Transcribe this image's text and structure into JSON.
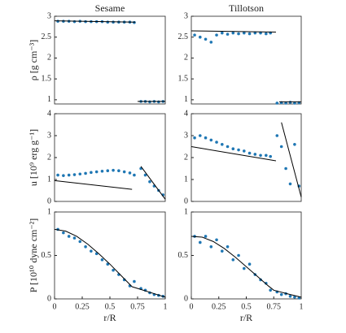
{
  "chart_data": [
    {
      "type": "scatter",
      "title": "Sesame",
      "ylabel": "ρ [g cm⁻³]",
      "xlim": [
        0,
        1
      ],
      "ylim": [
        0.9,
        3
      ],
      "yticks": [
        1,
        1.5,
        2,
        2.5,
        3
      ],
      "series": [
        {
          "color": "#1f77b4",
          "mode": "points",
          "x": [
            0.03,
            0.08,
            0.13,
            0.18,
            0.23,
            0.28,
            0.33,
            0.38,
            0.43,
            0.48,
            0.53,
            0.58,
            0.63,
            0.68,
            0.72,
            0.78,
            0.82,
            0.86,
            0.9,
            0.94,
            0.98
          ],
          "values": [
            2.88,
            2.88,
            2.88,
            2.87,
            2.88,
            2.87,
            2.87,
            2.87,
            2.87,
            2.86,
            2.86,
            2.86,
            2.86,
            2.86,
            2.85,
            0.96,
            0.96,
            0.95,
            0.96,
            0.95,
            0.96
          ]
        },
        {
          "color": "#000000",
          "mode": "line",
          "x": [
            0,
            0.73,
            null,
            0.75,
            1
          ],
          "values": [
            2.89,
            2.86,
            null,
            0.96,
            0.96
          ]
        }
      ]
    },
    {
      "type": "scatter",
      "title": "Tillotson",
      "xlim": [
        0,
        1
      ],
      "ylim": [
        0.9,
        3
      ],
      "yticks": [
        1,
        1.5,
        2,
        2.5,
        3
      ],
      "series": [
        {
          "color": "#1f77b4",
          "mode": "points",
          "x": [
            0.03,
            0.08,
            0.13,
            0.18,
            0.23,
            0.28,
            0.33,
            0.38,
            0.43,
            0.48,
            0.53,
            0.58,
            0.63,
            0.68,
            0.72,
            0.78,
            0.82,
            0.86,
            0.9,
            0.94,
            0.98
          ],
          "values": [
            2.55,
            2.5,
            2.45,
            2.38,
            2.55,
            2.6,
            2.57,
            2.6,
            2.58,
            2.6,
            2.58,
            2.6,
            2.6,
            2.58,
            2.6,
            0.92,
            0.93,
            0.92,
            0.94,
            0.92,
            0.93
          ]
        },
        {
          "color": "#000000",
          "mode": "line",
          "x": [
            0,
            0.77,
            null,
            0.8,
            1
          ],
          "values": [
            2.65,
            2.62,
            null,
            0.95,
            0.95
          ]
        }
      ]
    },
    {
      "type": "scatter",
      "ylabel": "u [10⁹ erg g⁻¹]",
      "xlim": [
        0,
        1
      ],
      "ylim": [
        0,
        4
      ],
      "yticks": [
        0,
        1,
        2,
        3,
        4
      ],
      "series": [
        {
          "color": "#1f77b4",
          "mode": "points",
          "x": [
            0.03,
            0.08,
            0.13,
            0.18,
            0.23,
            0.28,
            0.33,
            0.38,
            0.43,
            0.48,
            0.53,
            0.58,
            0.63,
            0.68,
            0.72,
            0.78,
            0.82,
            0.86,
            0.9,
            0.94,
            0.98
          ],
          "values": [
            1.2,
            1.18,
            1.2,
            1.22,
            1.25,
            1.28,
            1.32,
            1.35,
            1.38,
            1.4,
            1.42,
            1.4,
            1.35,
            1.3,
            1.2,
            1.5,
            1.2,
            0.9,
            0.7,
            0.5,
            0.3
          ]
        },
        {
          "color": "#000000",
          "mode": "line",
          "x": [
            0,
            0.7,
            null,
            0.78,
            1
          ],
          "values": [
            0.95,
            0.55,
            null,
            1.6,
            0.1
          ]
        }
      ]
    },
    {
      "type": "scatter",
      "xlim": [
        0,
        1
      ],
      "ylim": [
        0,
        4
      ],
      "yticks": [
        0,
        1,
        2,
        3,
        4
      ],
      "series": [
        {
          "color": "#1f77b4",
          "mode": "points",
          "x": [
            0.03,
            0.08,
            0.13,
            0.18,
            0.23,
            0.28,
            0.33,
            0.38,
            0.43,
            0.48,
            0.53,
            0.58,
            0.63,
            0.68,
            0.72,
            0.78,
            0.82,
            0.86,
            0.9,
            0.94,
            0.98
          ],
          "values": [
            2.9,
            3.0,
            2.9,
            2.8,
            2.7,
            2.6,
            2.5,
            2.4,
            2.35,
            2.3,
            2.2,
            2.15,
            2.1,
            2.1,
            2.05,
            3.0,
            2.5,
            1.5,
            0.8,
            2.6,
            0.7
          ]
        },
        {
          "color": "#000000",
          "mode": "line",
          "x": [
            0,
            0.77,
            null,
            0.82,
            1
          ],
          "values": [
            2.5,
            1.85,
            null,
            3.6,
            0.2
          ]
        }
      ]
    },
    {
      "type": "scatter",
      "ylabel": "P [10¹⁰ dyne cm⁻²]",
      "xlabel": "r/R",
      "xlim": [
        0,
        1
      ],
      "ylim": [
        0,
        1
      ],
      "yticks": [
        0,
        0.5,
        1
      ],
      "xticks": [
        0,
        0.25,
        0.5,
        0.75,
        1
      ],
      "series": [
        {
          "color": "#1f77b4",
          "mode": "points",
          "x": [
            0.03,
            0.08,
            0.13,
            0.18,
            0.23,
            0.28,
            0.33,
            0.38,
            0.43,
            0.48,
            0.53,
            0.58,
            0.63,
            0.68,
            0.72,
            0.78,
            0.82,
            0.86,
            0.9,
            0.94,
            0.98
          ],
          "values": [
            0.8,
            0.76,
            0.72,
            0.7,
            0.66,
            0.6,
            0.55,
            0.52,
            0.45,
            0.4,
            0.33,
            0.28,
            0.22,
            0.15,
            0.2,
            0.12,
            0.1,
            0.07,
            0.05,
            0.04,
            0.03
          ]
        },
        {
          "color": "#000000",
          "mode": "line",
          "x": [
            0,
            0.1,
            0.2,
            0.3,
            0.4,
            0.5,
            0.6,
            0.7,
            0.75,
            0.9,
            1
          ],
          "values": [
            0.8,
            0.78,
            0.72,
            0.63,
            0.52,
            0.4,
            0.27,
            0.14,
            0.12,
            0.06,
            0.02
          ]
        }
      ]
    },
    {
      "type": "scatter",
      "xlabel": "r/R",
      "xlim": [
        0,
        1
      ],
      "ylim": [
        0,
        1
      ],
      "yticks": [
        0,
        0.5,
        1
      ],
      "xticks": [
        0,
        0.25,
        0.5,
        0.75,
        1
      ],
      "series": [
        {
          "color": "#1f77b4",
          "mode": "points",
          "x": [
            0.03,
            0.08,
            0.13,
            0.18,
            0.23,
            0.28,
            0.33,
            0.38,
            0.43,
            0.48,
            0.53,
            0.58,
            0.63,
            0.68,
            0.72,
            0.78,
            0.82,
            0.86,
            0.9,
            0.94,
            0.98
          ],
          "values": [
            0.72,
            0.65,
            0.72,
            0.6,
            0.68,
            0.55,
            0.6,
            0.45,
            0.5,
            0.35,
            0.4,
            0.28,
            0.22,
            0.18,
            0.1,
            0.08,
            0.05,
            0.06,
            0.03,
            0.02,
            0.01
          ]
        },
        {
          "color": "#000000",
          "mode": "line",
          "x": [
            0,
            0.1,
            0.2,
            0.3,
            0.4,
            0.5,
            0.6,
            0.7,
            0.75,
            0.9,
            1
          ],
          "values": [
            0.72,
            0.71,
            0.66,
            0.58,
            0.48,
            0.37,
            0.26,
            0.15,
            0.1,
            0.05,
            0.02
          ]
        }
      ]
    }
  ]
}
